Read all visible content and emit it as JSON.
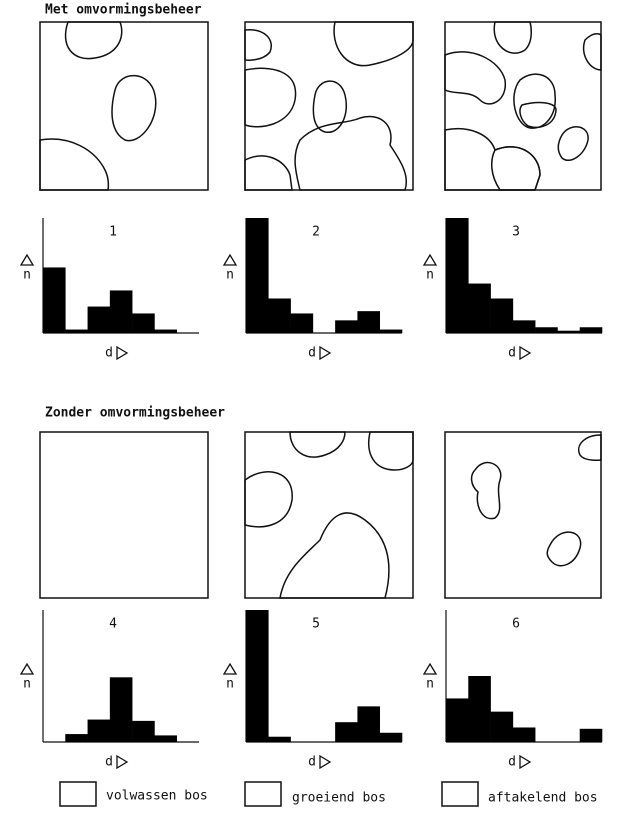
{
  "headings": [
    "Met omvormingsbeheer",
    "Zonder omvormingsbeheer"
  ],
  "legend": [
    "volwassen bos",
    "groeiend bos",
    "aftakelend bos"
  ],
  "chart_data": [
    {
      "type": "bar",
      "title": "1",
      "y_label": "n",
      "x_label": "d",
      "values": [
        5.7,
        0.3,
        2.3,
        3.7,
        1.7,
        0.3,
        0
      ],
      "ylim": [
        0,
        10
      ],
      "color": "#000000"
    },
    {
      "type": "bar",
      "title": "2",
      "y_label": "n",
      "x_label": "d",
      "values": [
        10,
        3.0,
        1.7,
        0,
        1.1,
        1.9,
        0.3
      ],
      "ylim": [
        0,
        10
      ],
      "color": "#000000"
    },
    {
      "type": "bar",
      "title": "3",
      "y_label": "n",
      "x_label": "d",
      "values": [
        10,
        4.3,
        3.0,
        1.1,
        0.5,
        0.2,
        0.5
      ],
      "ylim": [
        0,
        10
      ],
      "color": "#000000"
    },
    {
      "type": "bar",
      "title": "4",
      "y_label": "n",
      "x_label": "d",
      "values": [
        0,
        0.6,
        1.7,
        4.9,
        1.6,
        0.5,
        0
      ],
      "ylim": [
        0,
        10
      ],
      "color": "#000000"
    },
    {
      "type": "bar",
      "title": "5",
      "y_label": "n",
      "x_label": "d",
      "values": [
        10,
        0.4,
        0,
        0,
        1.5,
        2.7,
        0.7
      ],
      "ylim": [
        0,
        10
      ],
      "color": "#000000"
    },
    {
      "type": "bar",
      "title": "6",
      "y_label": "n",
      "x_label": "d",
      "values": [
        3.3,
        5.0,
        2.3,
        1.1,
        0,
        0,
        1.0
      ],
      "ylim": [
        0,
        10
      ],
      "color": "#000000"
    }
  ]
}
